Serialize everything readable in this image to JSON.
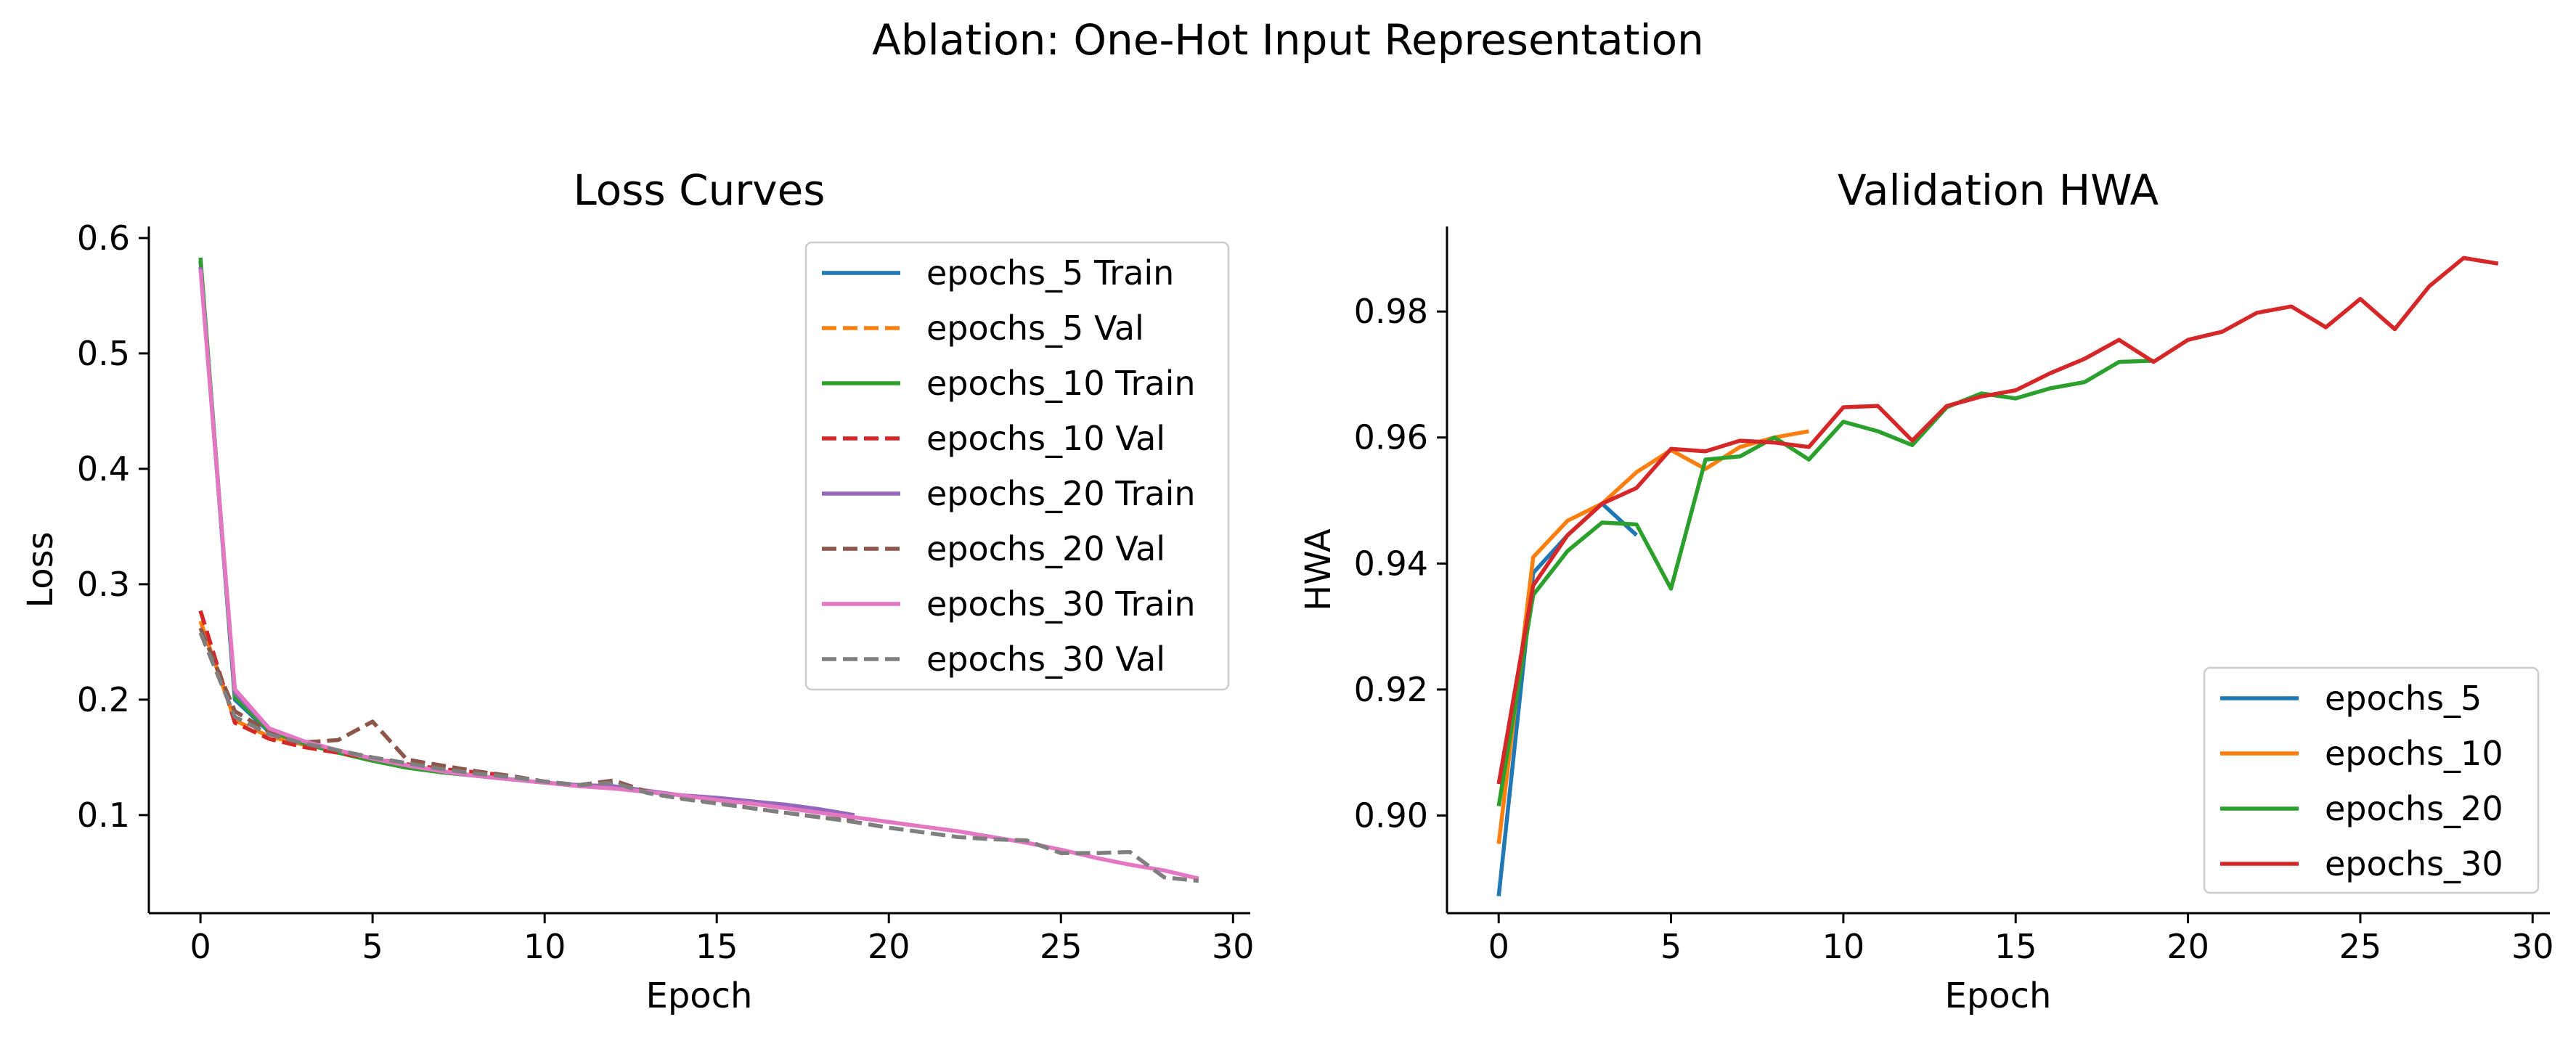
{
  "suptitle": "Ablation: One-Hot Input Representation",
  "colors": {
    "epochs_5": "#1f77b4",
    "epochs_5_val": "#ff7f0e",
    "epochs_10": "#2ca02c",
    "epochs_10_val": "#d62728",
    "epochs_20": "#9467bd",
    "epochs_20_val": "#8c564b",
    "epochs_30": "#e377c2",
    "epochs_30_val": "#7f7f7f",
    "hwa_epochs_5": "#1f77b4",
    "hwa_epochs_10": "#ff7f0e",
    "hwa_epochs_20": "#2ca02c",
    "hwa_epochs_30": "#d62728"
  },
  "chart_data": [
    {
      "type": "line",
      "title": "Loss Curves",
      "xlabel": "Epoch",
      "ylabel": "Loss",
      "xlim": [
        -1.5,
        30.5
      ],
      "ylim": [
        0.015,
        0.61
      ],
      "xticks": [
        0,
        5,
        10,
        15,
        20,
        25,
        30
      ],
      "yticks": [
        0.1,
        0.2,
        0.3,
        0.4,
        0.5,
        0.6
      ],
      "ytick_labels": [
        "0.1",
        "0.2",
        "0.3",
        "0.4",
        "0.5",
        "0.6"
      ],
      "grid": false,
      "legend_position": "top-right",
      "series": [
        {
          "name": "epochs_5 Train",
          "color": "#1f77b4",
          "style": "solid",
          "x": [
            0,
            1,
            2,
            3,
            4
          ],
          "y": [
            0.58,
            0.2,
            0.172,
            0.163,
            0.156
          ]
        },
        {
          "name": "epochs_5 Val",
          "color": "#ff7f0e",
          "style": "dashed",
          "x": [
            0,
            1,
            2,
            3,
            4
          ],
          "y": [
            0.268,
            0.182,
            0.168,
            0.161,
            0.156
          ]
        },
        {
          "name": "epochs_10 Train",
          "color": "#2ca02c",
          "style": "solid",
          "x": [
            0,
            1,
            2,
            3,
            4,
            5,
            6,
            7,
            8,
            9
          ],
          "y": [
            0.583,
            0.202,
            0.173,
            0.162,
            0.154,
            0.147,
            0.141,
            0.137,
            0.134,
            0.131
          ]
        },
        {
          "name": "epochs_10 Val",
          "color": "#d62728",
          "style": "dashed",
          "x": [
            0,
            1,
            2,
            3,
            4,
            5,
            6,
            7,
            8,
            9
          ],
          "y": [
            0.277,
            0.18,
            0.166,
            0.159,
            0.154,
            0.149,
            0.144,
            0.14,
            0.137,
            0.134
          ]
        },
        {
          "name": "epochs_20 Train",
          "color": "#9467bd",
          "style": "solid",
          "x": [
            0,
            1,
            2,
            3,
            4,
            5,
            6,
            7,
            8,
            9,
            10,
            11,
            12,
            13,
            14,
            15,
            16,
            17,
            18,
            19
          ],
          "y": [
            0.575,
            0.206,
            0.175,
            0.164,
            0.156,
            0.149,
            0.143,
            0.138,
            0.134,
            0.131,
            0.128,
            0.126,
            0.125,
            0.121,
            0.117,
            0.115,
            0.112,
            0.109,
            0.105,
            0.1
          ]
        },
        {
          "name": "epochs_20 Val",
          "color": "#8c564b",
          "style": "dashed",
          "x": [
            0,
            1,
            2,
            3,
            4,
            5,
            6,
            7,
            8,
            9,
            10,
            11,
            12,
            13,
            14,
            15,
            16,
            17,
            18,
            19
          ],
          "y": [
            0.262,
            0.19,
            0.172,
            0.163,
            0.165,
            0.181,
            0.148,
            0.143,
            0.138,
            0.134,
            0.129,
            0.126,
            0.13,
            0.12,
            0.115,
            0.111,
            0.106,
            0.102,
            0.098,
            0.095
          ]
        },
        {
          "name": "epochs_30 Train",
          "color": "#e377c2",
          "style": "solid",
          "x": [
            0,
            1,
            2,
            3,
            4,
            5,
            6,
            7,
            8,
            9,
            10,
            11,
            12,
            13,
            14,
            15,
            16,
            17,
            18,
            19,
            20,
            21,
            22,
            23,
            24,
            25,
            26,
            27,
            28,
            29
          ],
          "y": [
            0.573,
            0.209,
            0.175,
            0.164,
            0.156,
            0.149,
            0.143,
            0.138,
            0.134,
            0.131,
            0.128,
            0.125,
            0.123,
            0.12,
            0.117,
            0.113,
            0.11,
            0.106,
            0.102,
            0.098,
            0.094,
            0.09,
            0.086,
            0.081,
            0.076,
            0.07,
            0.063,
            0.057,
            0.052,
            0.045
          ]
        },
        {
          "name": "epochs_30 Val",
          "color": "#7f7f7f",
          "style": "dashed",
          "x": [
            0,
            1,
            2,
            3,
            4,
            5,
            6,
            7,
            8,
            9,
            10,
            11,
            12,
            13,
            14,
            15,
            16,
            17,
            18,
            19,
            20,
            21,
            22,
            23,
            24,
            25,
            26,
            27,
            28,
            29
          ],
          "y": [
            0.258,
            0.185,
            0.17,
            0.162,
            0.156,
            0.15,
            0.145,
            0.14,
            0.136,
            0.133,
            0.129,
            0.126,
            0.128,
            0.119,
            0.114,
            0.11,
            0.106,
            0.102,
            0.098,
            0.094,
            0.089,
            0.085,
            0.081,
            0.079,
            0.078,
            0.067,
            0.067,
            0.068,
            0.046,
            0.043
          ]
        }
      ]
    },
    {
      "type": "line",
      "title": "Validation HWA",
      "xlabel": "Epoch",
      "ylabel": "HWA",
      "xlim": [
        -1.5,
        30.5
      ],
      "ylim": [
        0.8845,
        0.9935
      ],
      "xticks": [
        0,
        5,
        10,
        15,
        20,
        25,
        30
      ],
      "yticks": [
        0.9,
        0.92,
        0.94,
        0.96,
        0.98
      ],
      "ytick_labels": [
        "0.90",
        "0.92",
        "0.94",
        "0.96",
        "0.98"
      ],
      "grid": false,
      "legend_position": "bottom-right",
      "series": [
        {
          "name": "epochs_5",
          "color": "#1f77b4",
          "style": "solid",
          "x": [
            0,
            1,
            2,
            3,
            4
          ],
          "y": [
            0.8872,
            0.9385,
            0.9445,
            0.9495,
            0.9445
          ]
        },
        {
          "name": "epochs_10",
          "color": "#ff7f0e",
          "style": "solid",
          "x": [
            0,
            1,
            2,
            3,
            4,
            5,
            6,
            7,
            8,
            9
          ],
          "y": [
            0.8955,
            0.941,
            0.9468,
            0.9495,
            0.9545,
            0.958,
            0.955,
            0.9585,
            0.96,
            0.961
          ]
        },
        {
          "name": "epochs_20",
          "color": "#2ca02c",
          "style": "solid",
          "x": [
            0,
            1,
            2,
            3,
            4,
            5,
            6,
            7,
            8,
            9,
            10,
            11,
            12,
            13,
            14,
            15,
            16,
            17,
            18,
            19
          ],
          "y": [
            0.9015,
            0.935,
            0.942,
            0.9465,
            0.9462,
            0.936,
            0.9565,
            0.957,
            0.96,
            0.9565,
            0.9625,
            0.961,
            0.9588,
            0.9648,
            0.967,
            0.9662,
            0.9678,
            0.9688,
            0.972,
            0.9722
          ]
        },
        {
          "name": "epochs_30",
          "color": "#d62728",
          "style": "solid",
          "x": [
            0,
            1,
            2,
            3,
            4,
            5,
            6,
            7,
            8,
            9,
            10,
            11,
            12,
            13,
            14,
            15,
            16,
            17,
            18,
            19,
            20,
            21,
            22,
            23,
            24,
            25,
            26,
            27,
            28,
            29
          ],
          "y": [
            0.905,
            0.9365,
            0.9445,
            0.9495,
            0.952,
            0.9582,
            0.9578,
            0.9595,
            0.9592,
            0.9585,
            0.9648,
            0.965,
            0.9595,
            0.965,
            0.9665,
            0.9675,
            0.9702,
            0.9725,
            0.9755,
            0.972,
            0.9755,
            0.9768,
            0.9798,
            0.9808,
            0.9775,
            0.982,
            0.9772,
            0.984,
            0.9885,
            0.9876
          ]
        }
      ]
    }
  ]
}
